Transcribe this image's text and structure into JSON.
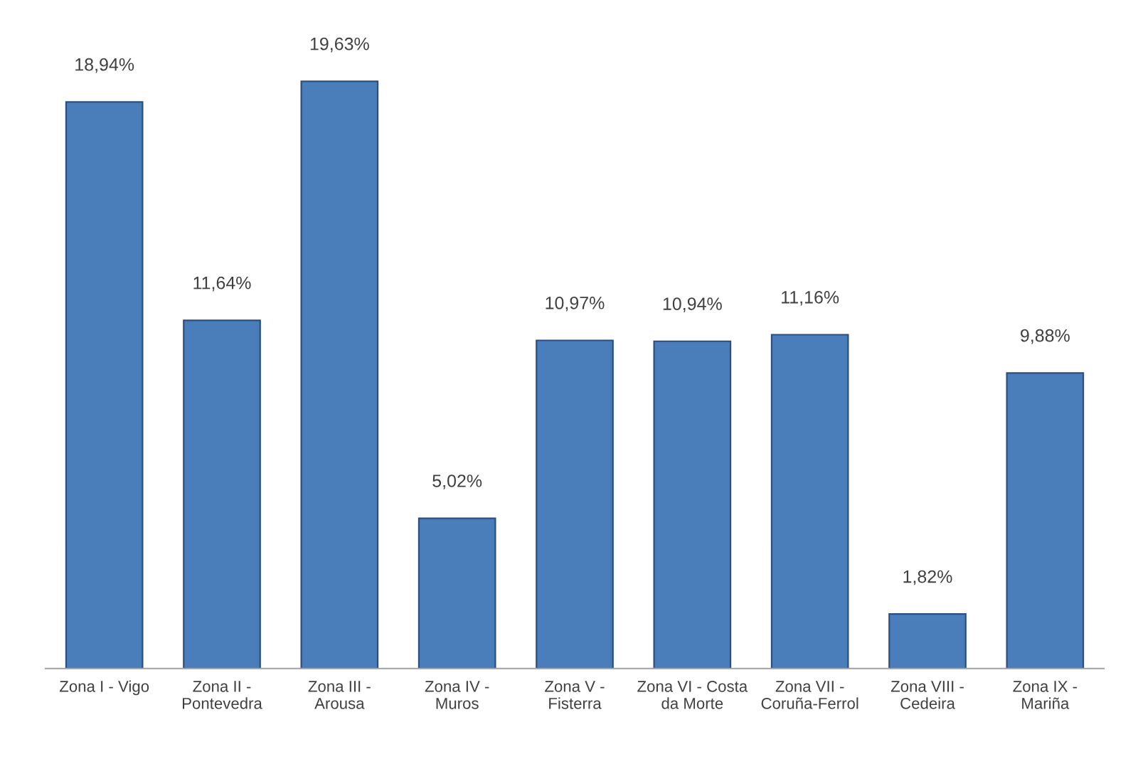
{
  "chart_data": {
    "type": "bar",
    "categories": [
      "Zona I - Vigo",
      "Zona II -\nPontevedra",
      "Zona III -\nArousa",
      "Zona IV -\nMuros",
      "Zona V -\nFisterra",
      "Zona VI - Costa\nda Morte",
      "Zona VII -\nCoruña-Ferrol",
      "Zona VIII -\nCedeira",
      "Zona IX -\nMariña"
    ],
    "values": [
      18.94,
      11.64,
      19.63,
      5.02,
      10.97,
      10.94,
      11.16,
      1.82,
      9.88
    ],
    "value_labels": [
      "18,94%",
      "11,64%",
      "19,63%",
      "5,02%",
      "10,97%",
      "10,94%",
      "11,16%",
      "1,82%",
      "9,88%"
    ],
    "color": "#4a7ebb",
    "grid": false,
    "legend": false
  }
}
